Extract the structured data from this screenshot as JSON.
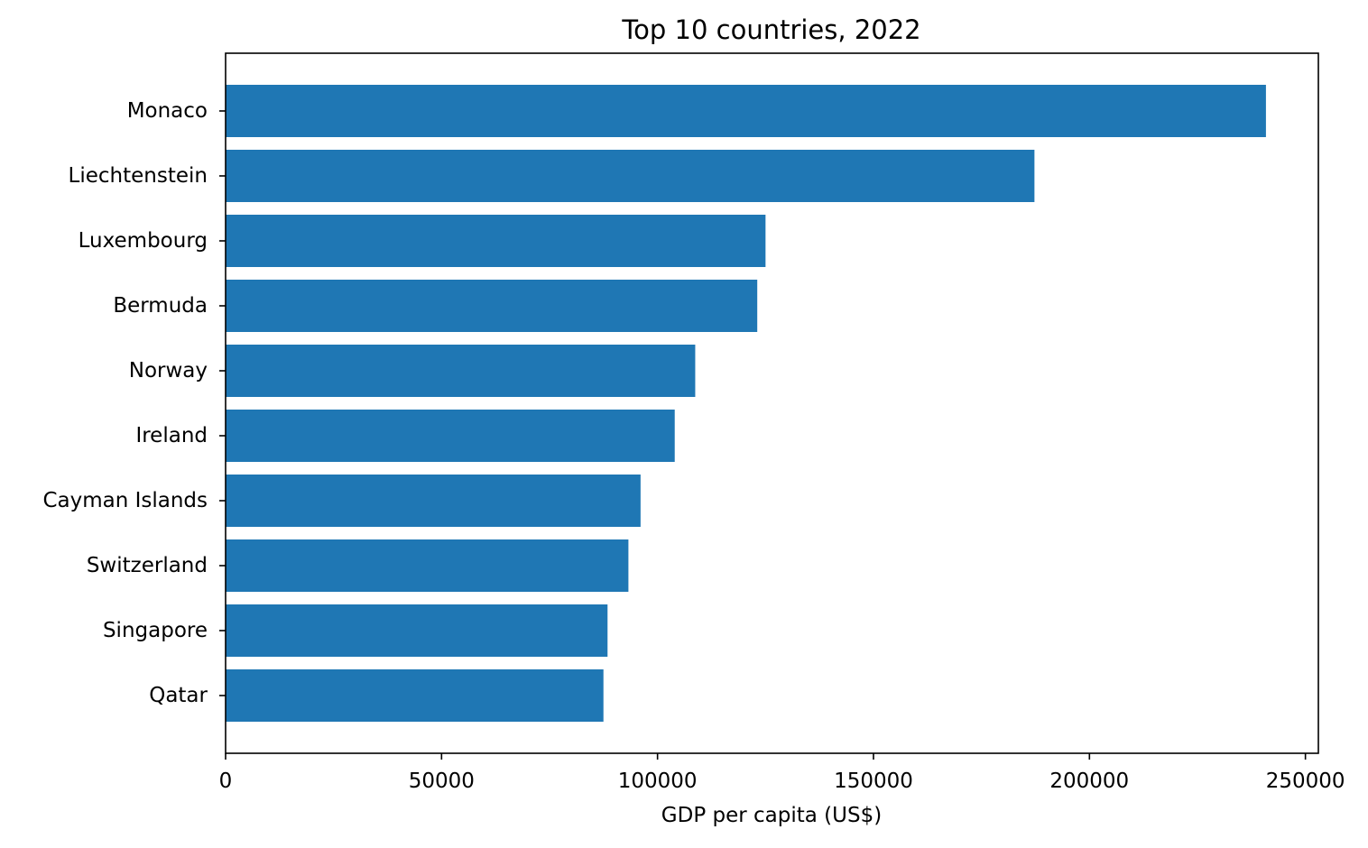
{
  "chart_data": {
    "type": "bar",
    "orientation": "horizontal",
    "title": "Top 10 countries, 2022",
    "xlabel": "GDP per capita (US$)",
    "ylabel": "",
    "categories": [
      "Monaco",
      "Liechtenstein",
      "Luxembourg",
      "Bermuda",
      "Norway",
      "Ireland",
      "Cayman Islands",
      "Switzerland",
      "Singapore",
      "Qatar"
    ],
    "values": [
      240862,
      187267,
      125006,
      123091,
      108729,
      103983,
      96074,
      93260,
      88429,
      87480
    ],
    "xlim": [
      0,
      253000
    ],
    "xticks": [
      0,
      50000,
      100000,
      150000,
      200000,
      250000
    ],
    "xtick_labels": [
      "0",
      "50000",
      "100000",
      "150000",
      "200000",
      "250000"
    ],
    "grid": false,
    "bar_color": "#1f77b4"
  }
}
